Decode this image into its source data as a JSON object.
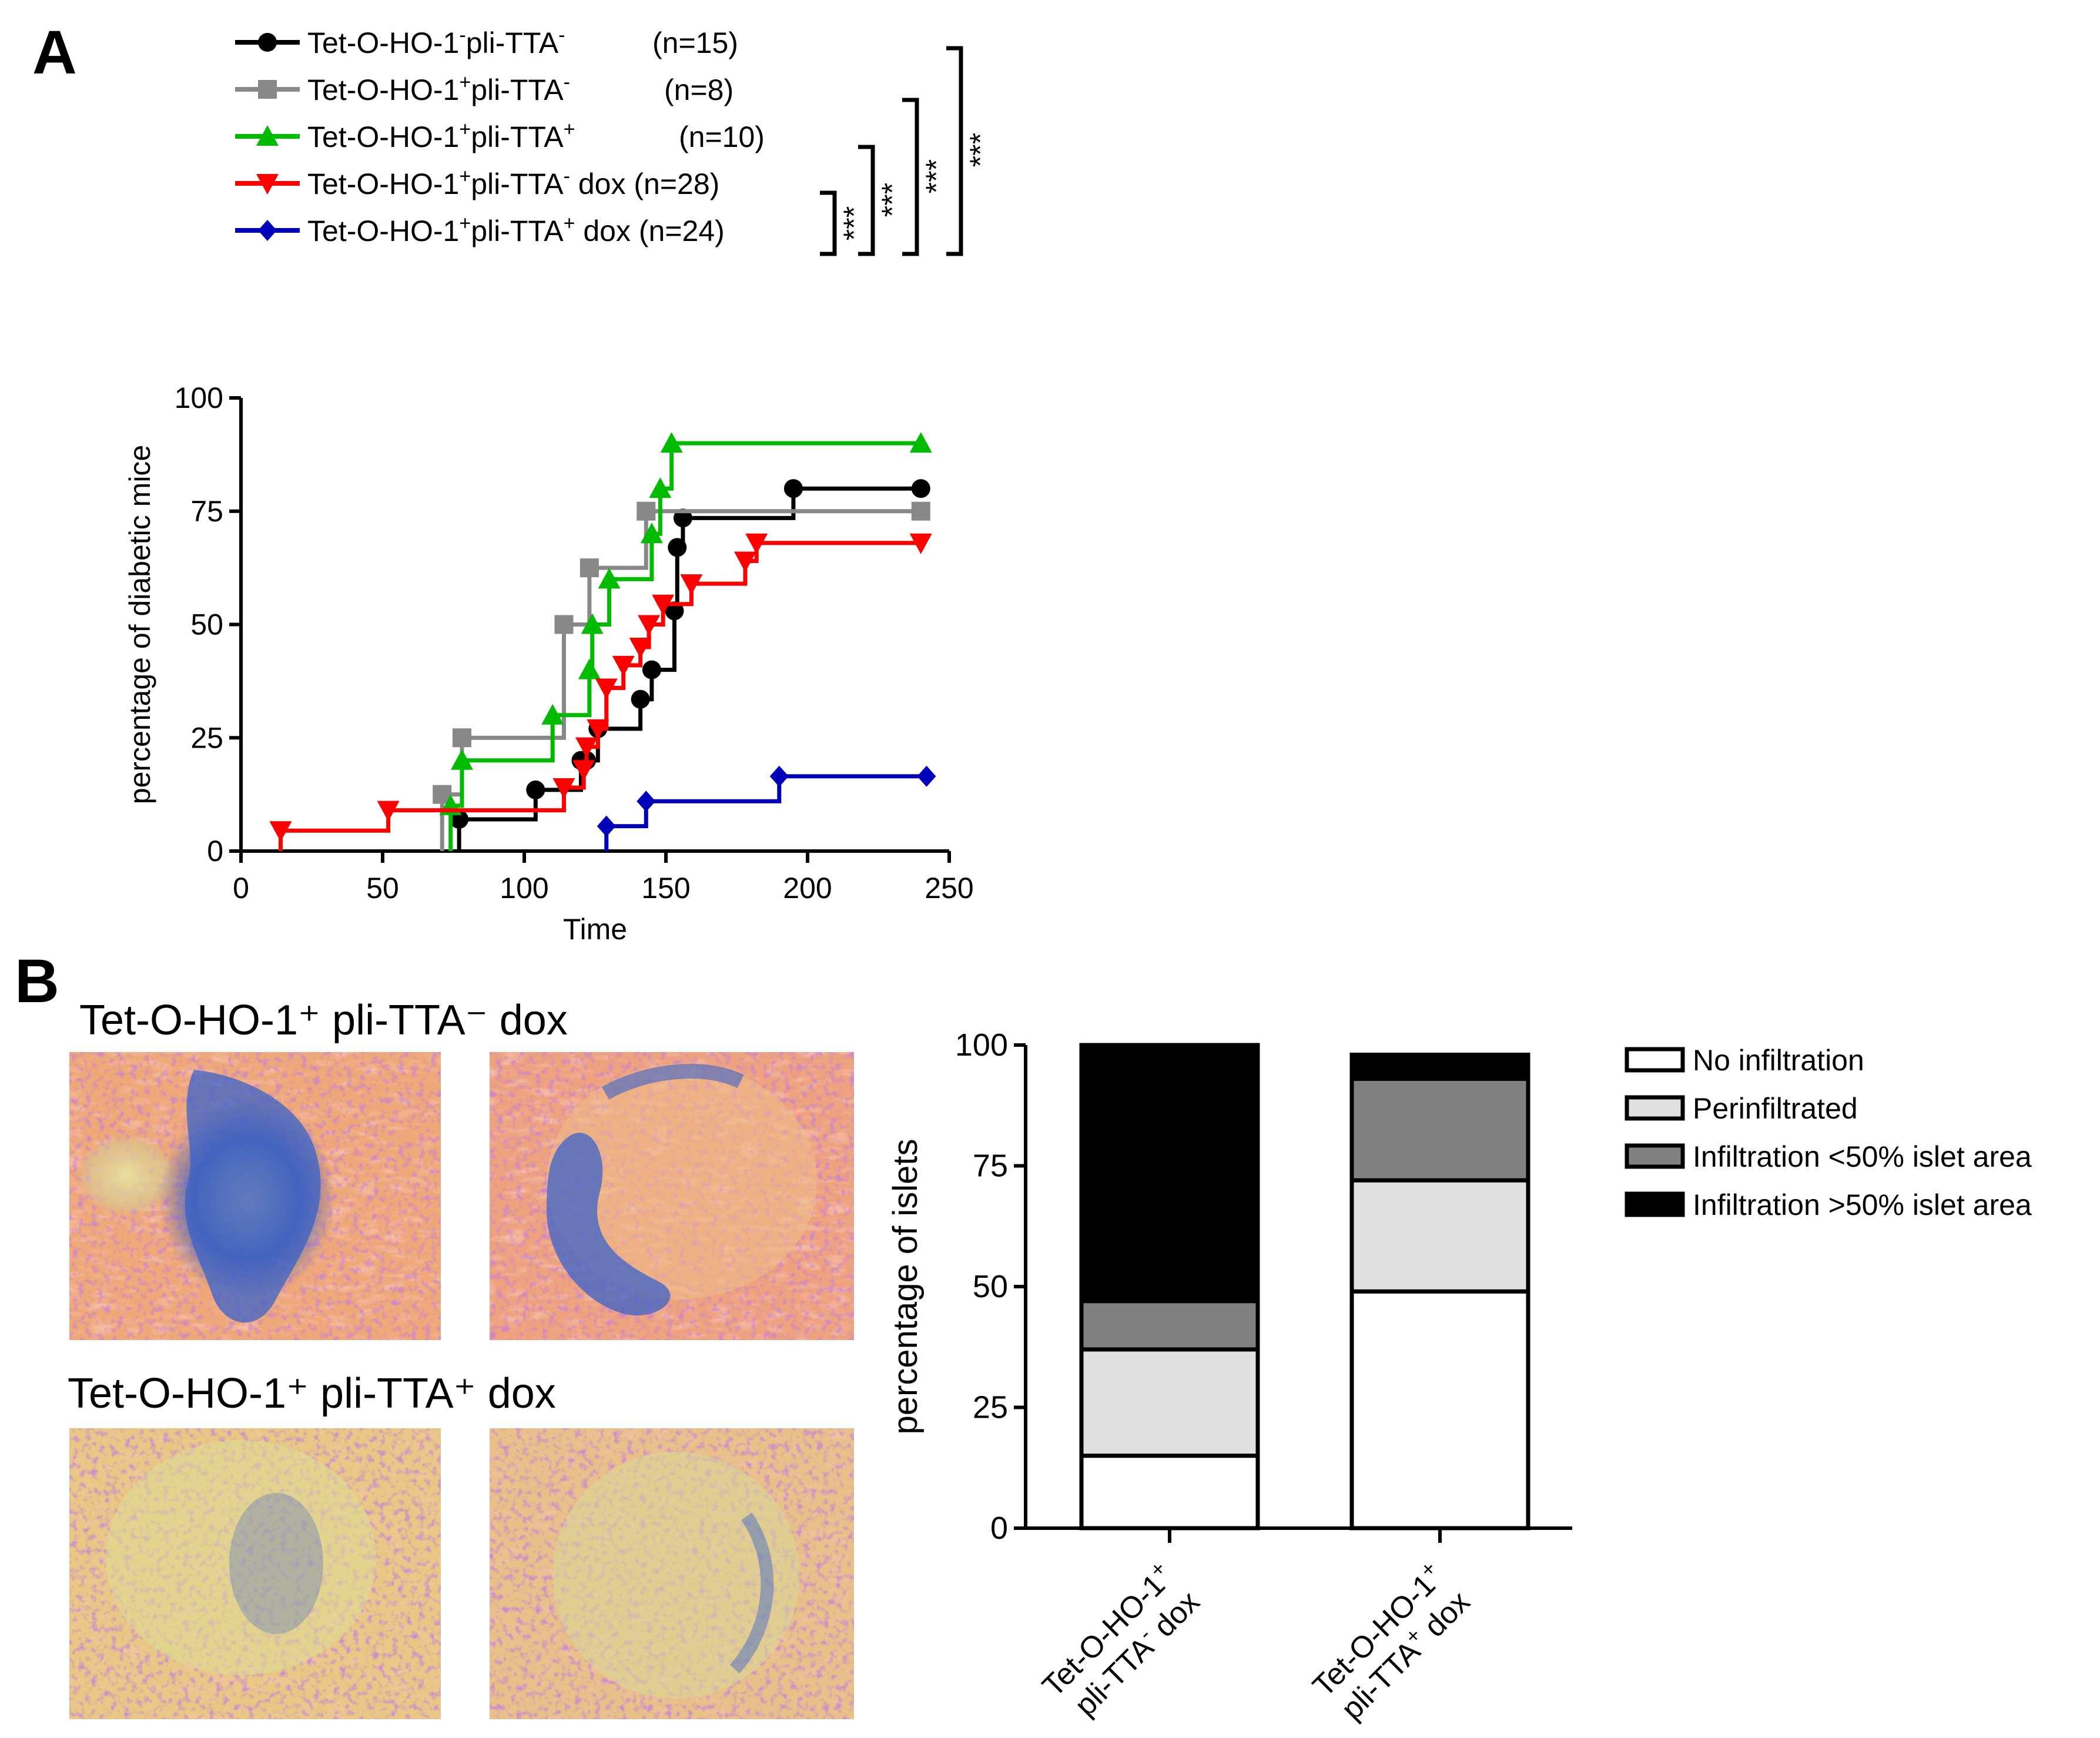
{
  "panel_labels": {
    "a": "A",
    "b": "B"
  },
  "colors": {
    "black_series": "#000000",
    "gray_series": "#888888",
    "green_series": "#00bb00",
    "red_series": "#ff0000",
    "blue_series": "#0000bb",
    "no_infiltration": "#ffffff",
    "perinfiltrated": "#e0e0e0",
    "infiltration_lt50": "#808080",
    "infiltration_gt50": "#000000"
  },
  "legend_a": [
    {
      "id": "s1",
      "base": "Tet-O-HO-1",
      "sup1": "-",
      "mid": "pli-TTA",
      "sup2": "-",
      "tail": "",
      "n": "(n=15)",
      "marker": "circle"
    },
    {
      "id": "s2",
      "base": "Tet-O-HO-1",
      "sup1": "+",
      "mid": "pli-TTA",
      "sup2": "-",
      "tail": "",
      "n": "(n=8)",
      "marker": "square"
    },
    {
      "id": "s3",
      "base": "Tet-O-HO-1",
      "sup1": "+",
      "mid": "pli-TTA",
      "sup2": "+",
      "tail": "",
      "n": "(n=10)",
      "marker": "triangle-up"
    },
    {
      "id": "s4",
      "base": "Tet-O-HO-1",
      "sup1": "+",
      "mid": "pli-TTA",
      "sup2": "-",
      "tail": " dox",
      "n": "(n=28)",
      "marker": "triangle-down"
    },
    {
      "id": "s5",
      "base": "Tet-O-HO-1",
      "sup1": "+",
      "mid": "pli-TTA",
      "sup2": "+",
      "tail": " dox",
      "n": "(n=24)",
      "marker": "diamond"
    }
  ],
  "significance": [
    "***",
    "***",
    "***",
    "***"
  ],
  "chart_data": [
    {
      "type": "line",
      "subtype": "step",
      "xlabel": "Time",
      "ylabel": "percentage of diabetic mice",
      "xlim": [
        0,
        250
      ],
      "ylim": [
        0,
        100
      ],
      "xticks": [
        0,
        50,
        100,
        150,
        200,
        250
      ],
      "yticks": [
        0,
        25,
        50,
        75,
        100
      ],
      "series": [
        {
          "ref": "s1",
          "steps": [
            [
              77,
              7
            ],
            [
              104,
              13.5
            ],
            [
              120,
              20
            ],
            [
              122,
              20
            ],
            [
              126,
              27
            ],
            [
              141,
              33.5
            ],
            [
              145,
              40
            ],
            [
              153,
              53
            ],
            [
              154,
              67
            ],
            [
              156,
              73.5
            ],
            [
              195,
              80
            ],
            [
              240,
              80
            ]
          ]
        },
        {
          "ref": "s2",
          "steps": [
            [
              71,
              12.5
            ],
            [
              78,
              25
            ],
            [
              114,
              50
            ],
            [
              123,
              62.5
            ],
            [
              143,
              75
            ],
            [
              240,
              75
            ]
          ]
        },
        {
          "ref": "s3",
          "steps": [
            [
              74,
              10
            ],
            [
              78,
              20
            ],
            [
              110,
              30
            ],
            [
              123,
              40
            ],
            [
              124,
              50
            ],
            [
              130,
              60
            ],
            [
              145,
              70
            ],
            [
              148,
              80
            ],
            [
              152,
              90
            ],
            [
              240,
              90
            ]
          ]
        },
        {
          "ref": "s4",
          "steps": [
            [
              14,
              4.5
            ],
            [
              52,
              9
            ],
            [
              114,
              14
            ],
            [
              121,
              18
            ],
            [
              122,
              23
            ],
            [
              126,
              27
            ],
            [
              129,
              36
            ],
            [
              135,
              41
            ],
            [
              141,
              45
            ],
            [
              144,
              50
            ],
            [
              149,
              54.5
            ],
            [
              159,
              59
            ],
            [
              178,
              64
            ],
            [
              182,
              68
            ],
            [
              240,
              68
            ]
          ]
        },
        {
          "ref": "s5",
          "steps": [
            [
              129,
              5.5
            ],
            [
              143,
              11
            ],
            [
              190,
              16.5
            ],
            [
              240,
              16.5
            ],
            [
              242,
              16.5
            ]
          ]
        }
      ]
    },
    {
      "type": "bar",
      "subtype": "stacked",
      "ylabel": "percentage of islets",
      "ylim": [
        0,
        100
      ],
      "yticks": [
        0,
        25,
        50,
        75,
        100
      ],
      "categories": [
        {
          "line1": "Tet-O-HO-1",
          "line1_sup": "+",
          "line2": "pli-TTA",
          "line2_sup": "-",
          "line2_tail": " dox"
        },
        {
          "line1": "Tet-O-HO-1",
          "line1_sup": "+",
          "line2": "pli-TTA",
          "line2_sup": "+",
          "line2_tail": " dox"
        }
      ],
      "series": [
        {
          "name": "No infiltration",
          "values": [
            15,
            49
          ]
        },
        {
          "name": "Perinfiltrated",
          "values": [
            22,
            23
          ]
        },
        {
          "name": "Infiltration <50% islet area",
          "values": [
            10,
            21
          ]
        },
        {
          "name": "Infiltration >50% islet area",
          "values": [
            53,
            5
          ]
        }
      ]
    }
  ],
  "micrographs": {
    "row1_title": "Tet-O-HO-1⁺ pli-TTA⁻ dox",
    "row2_title": "Tet-O-HO-1⁺ pli-TTA⁺ dox"
  }
}
